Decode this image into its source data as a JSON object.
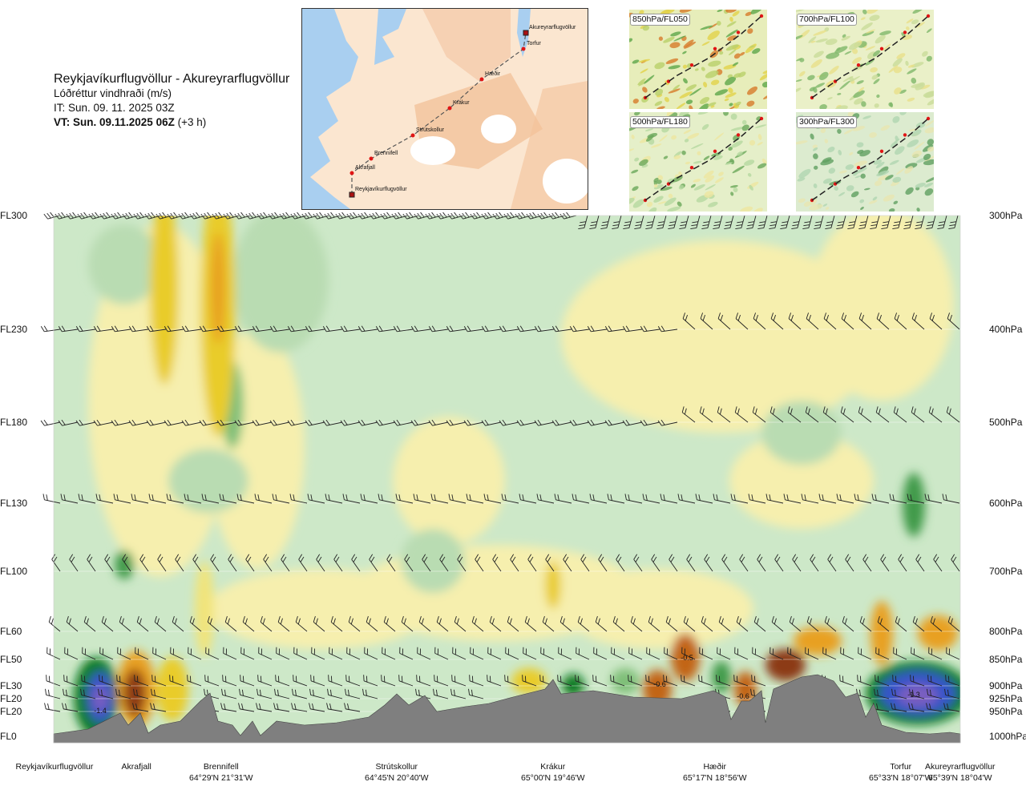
{
  "header": {
    "route": "Reykjavíkurflugvöllur - Akureyrarflugvöllur",
    "variable": "Lóðréttur vindhraði (m/s)",
    "issue_time": "IT: Sun. 09. 11. 2025 03Z",
    "valid_time": "VT: Sun. 09.11.2025 06Z",
    "valid_offset": "(+3 h)"
  },
  "route_map": {
    "waypoints": [
      {
        "name": "Akureyrarflugvöllur"
      },
      {
        "name": "Torfur"
      },
      {
        "name": "Hæðir"
      },
      {
        "name": "Krákur"
      },
      {
        "name": "Strútskollur"
      },
      {
        "name": "Brennifell"
      },
      {
        "name": "Akrafjall"
      },
      {
        "name": "Reykjavíkurflugvöllur"
      }
    ]
  },
  "level_maps": [
    {
      "label": "850hPa/FL050"
    },
    {
      "label": "700hPa/FL100"
    },
    {
      "label": "500hPa/FL180"
    },
    {
      "label": "300hPa/FL300"
    }
  ],
  "chart_data": {
    "type": "heatmap",
    "title": "Lóðréttur vindhraði (m/s)",
    "left_axis": [
      "FL300",
      "FL230",
      "FL180",
      "FL130",
      "FL100",
      "FL60",
      "FL50",
      "FL30",
      "FL20",
      "FL20",
      "FL0"
    ],
    "right_axis": [
      "300hPa",
      "400hPa",
      "500hPa",
      "600hPa",
      "700hPa",
      "800hPa",
      "850hPa",
      "900hPa",
      "925hPa",
      "950hPa",
      "1000hPa"
    ],
    "pressure_levels_hpa": [
      300,
      400,
      500,
      600,
      700,
      800,
      850,
      900,
      925,
      950,
      1000
    ],
    "color_scale": {
      "negative": [
        "#c9e6c1",
        "#a8d4a0",
        "#7fbf78",
        "#3f9a48",
        "#0e7a24",
        "#3655c8",
        "#7a5fc0"
      ],
      "positive": [
        "#f8f1b4",
        "#f1e47a",
        "#e9cc2c",
        "#e8a021",
        "#c26518",
        "#8c3a12"
      ]
    },
    "annotations": [
      {
        "value": "-1.4",
        "location": "Reykjavíkurflugvöllur",
        "pressure_hpa": 950
      },
      {
        "value": "-1.3",
        "location": "Akureyrarflugvöllur",
        "pressure_hpa": 925
      },
      {
        "value": "-0.5",
        "location": "between Krákur and Hæðir",
        "pressure_hpa": 850
      },
      {
        "value": "-0.6",
        "location": "between Krákur and Hæðir",
        "pressure_hpa": 900
      },
      {
        "value": "-0.6",
        "location": "Hæðir",
        "pressure_hpa": 925
      }
    ],
    "locations": [
      {
        "name": "Reykjavíkurflugvöllur",
        "coords": ""
      },
      {
        "name": "Akrafjall",
        "coords": ""
      },
      {
        "name": "Brennifell",
        "coords": "64°29'N 21°31'W"
      },
      {
        "name": "Strútskollur",
        "coords": "64°45'N 20°40'W"
      },
      {
        "name": "Krákur",
        "coords": "65°00'N 19°46'W"
      },
      {
        "name": "Hæðir",
        "coords": "65°17'N 18°56'W"
      },
      {
        "name": "Torfur",
        "coords": "65°33'N 18°07'W"
      },
      {
        "name": "Akureyrarflugvöllur",
        "coords": "65°39'N 18°04'W"
      }
    ]
  }
}
